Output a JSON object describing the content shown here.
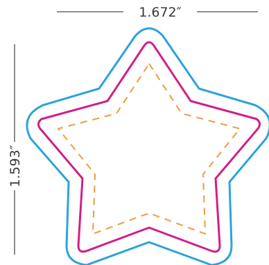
{
  "dimensions": {
    "width_label": "1.672″",
    "height_label": "1.593″"
  },
  "colors": {
    "bleed_outline": "#2ba3d8",
    "cut_line": "#d11f86",
    "safe_zone": "#f0a24a",
    "dimension_line": "#4a4a4a",
    "dimension_text": "#3a3a3a"
  }
}
